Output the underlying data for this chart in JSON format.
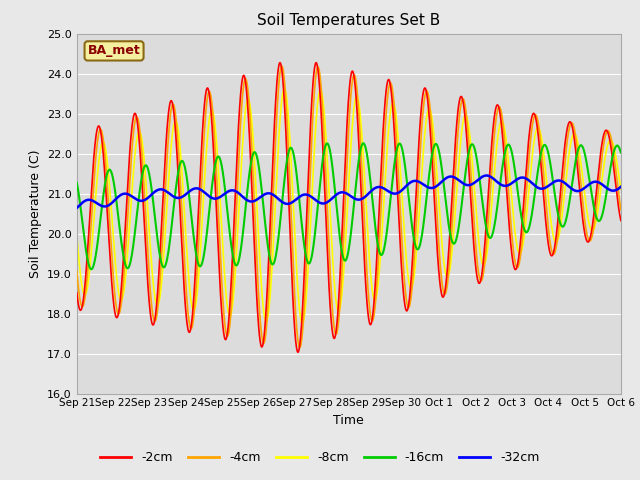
{
  "title": "Soil Temperatures Set B",
  "xlabel": "Time",
  "ylabel": "Soil Temperature (C)",
  "ylim": [
    16.0,
    25.0
  ],
  "yticks": [
    16.0,
    17.0,
    18.0,
    19.0,
    20.0,
    21.0,
    22.0,
    23.0,
    24.0,
    25.0
  ],
  "label_text": "BA_met",
  "colors": {
    "-2cm": "#FF0000",
    "-4cm": "#FFA500",
    "-8cm": "#FFFF00",
    "-16cm": "#00CC00",
    "-32cm": "#0000FF"
  },
  "line_widths": {
    "-2cm": 1.2,
    "-4cm": 1.2,
    "-8cm": 1.2,
    "-16cm": 1.5,
    "-32cm": 1.8
  },
  "bg_color": "#E8E8E8",
  "plot_bg": "#DCDCDC",
  "n_points": 1440,
  "xtick_labels": [
    "Sep 21",
    "Sep 22",
    "Sep 23",
    "Sep 24",
    "Sep 25",
    "Sep 26",
    "Sep 27",
    "Sep 28",
    "Sep 29",
    "Sep 30",
    "Oct 1",
    "Oct 2",
    "Oct 3",
    "Oct 4",
    "Oct 5",
    "Oct 6"
  ],
  "figsize": [
    6.4,
    4.8
  ],
  "dpi": 100
}
